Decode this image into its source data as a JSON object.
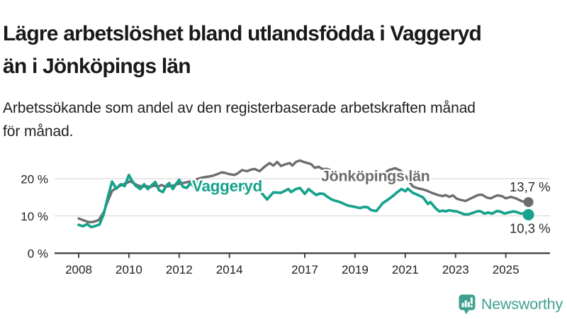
{
  "header": {
    "title_lines": [
      "Lägre arbetslöshet bland utlandsfödda i Vaggeryd",
      "än i Jönköpings län"
    ],
    "subtitle_lines": [
      "Arbetssökande som andel av den registerbaserade arbetskraften månad",
      "för månad."
    ]
  },
  "chart_data": {
    "type": "line",
    "title": "Lägre arbetslöshet bland utlandsfödda i Vaggeryd än i Jönköpings län",
    "subtitle": "Arbetssökande som andel av den registerbaserade arbetskraften månad för månad.",
    "grid": "horizontal",
    "legend": "inline-labels",
    "x_axis": {
      "tick_years": [
        2008,
        2010,
        2012,
        2014,
        2017,
        2019,
        2021,
        2023,
        2025
      ],
      "tick_labels": [
        "2008",
        "2010",
        "2012",
        "2014",
        "2017",
        "2019",
        "2021",
        "2023",
        "2025"
      ],
      "range": [
        2008,
        2026
      ]
    },
    "y_axis": {
      "ticks": [
        0,
        10,
        20
      ],
      "tick_labels": [
        "0 %",
        "10 %",
        "20 %"
      ],
      "unit": "%",
      "range": [
        0,
        26
      ]
    },
    "series": [
      {
        "name": "Jönköpings län",
        "color": "#6d6d71",
        "end_value": 13.7,
        "end_label": "13,7 %",
        "end_label_side": "above",
        "points": [
          [
            2008.0,
            9.3
          ],
          [
            2008.2,
            8.8
          ],
          [
            2008.4,
            8.3
          ],
          [
            2008.6,
            8.4
          ],
          [
            2008.8,
            8.9
          ],
          [
            2009.0,
            11.0
          ],
          [
            2009.15,
            13.8
          ],
          [
            2009.33,
            16.7
          ],
          [
            2009.5,
            17.5
          ],
          [
            2009.7,
            18.3
          ],
          [
            2009.9,
            18.8
          ],
          [
            2010.05,
            19.3
          ],
          [
            2010.2,
            18.7
          ],
          [
            2010.35,
            18.2
          ],
          [
            2010.55,
            17.8
          ],
          [
            2010.7,
            18.0
          ],
          [
            2010.85,
            17.7
          ],
          [
            2011.0,
            18.2
          ],
          [
            2011.15,
            17.8
          ],
          [
            2011.3,
            18.3
          ],
          [
            2011.45,
            17.8
          ],
          [
            2011.6,
            18.0
          ],
          [
            2011.75,
            18.1
          ],
          [
            2011.9,
            18.5
          ],
          [
            2012.05,
            18.7
          ],
          [
            2012.2,
            18.9
          ],
          [
            2012.35,
            19.1
          ],
          [
            2012.5,
            19.4
          ],
          [
            2012.65,
            19.7
          ],
          [
            2012.8,
            20.1
          ],
          [
            2013.0,
            20.4
          ],
          [
            2013.2,
            20.6
          ],
          [
            2013.35,
            20.8
          ],
          [
            2013.55,
            21.3
          ],
          [
            2013.7,
            21.7
          ],
          [
            2013.85,
            21.5
          ],
          [
            2014.0,
            21.2
          ],
          [
            2014.2,
            21.0
          ],
          [
            2014.35,
            21.5
          ],
          [
            2014.5,
            22.3
          ],
          [
            2014.7,
            22.0
          ],
          [
            2014.85,
            22.4
          ],
          [
            2015.0,
            22.6
          ],
          [
            2015.2,
            22.0
          ],
          [
            2015.4,
            23.2
          ],
          [
            2015.6,
            24.2
          ],
          [
            2015.75,
            23.5
          ],
          [
            2015.9,
            24.5
          ],
          [
            2016.05,
            23.4
          ],
          [
            2016.25,
            23.9
          ],
          [
            2016.4,
            24.2
          ],
          [
            2016.5,
            23.5
          ],
          [
            2016.65,
            24.5
          ],
          [
            2016.8,
            24.9
          ],
          [
            2016.95,
            24.5
          ],
          [
            2017.1,
            24.2
          ],
          [
            2017.25,
            23.9
          ],
          [
            2017.4,
            22.9
          ],
          [
            2017.55,
            23.2
          ],
          [
            2017.7,
            22.6
          ],
          [
            2017.9,
            22.6
          ],
          [
            2018.2,
            21.9
          ],
          [
            2018.5,
            21.4
          ],
          [
            2018.8,
            20.9
          ],
          [
            2019.1,
            20.5
          ],
          [
            2019.4,
            20.2
          ],
          [
            2019.7,
            20.0
          ],
          [
            2019.9,
            20.2
          ],
          [
            2020.1,
            21.2
          ],
          [
            2020.35,
            22.3
          ],
          [
            2020.6,
            22.8
          ],
          [
            2020.8,
            22.2
          ],
          [
            2021.0,
            20.8
          ],
          [
            2021.15,
            19.3
          ],
          [
            2021.3,
            17.9
          ],
          [
            2021.5,
            17.4
          ],
          [
            2021.7,
            17.1
          ],
          [
            2021.85,
            16.8
          ],
          [
            2022.05,
            16.2
          ],
          [
            2022.3,
            15.6
          ],
          [
            2022.5,
            15.3
          ],
          [
            2022.6,
            15.6
          ],
          [
            2022.75,
            15.1
          ],
          [
            2022.9,
            15.5
          ],
          [
            2023.05,
            14.6
          ],
          [
            2023.2,
            14.3
          ],
          [
            2023.4,
            14.0
          ],
          [
            2023.7,
            15.0
          ],
          [
            2023.9,
            15.6
          ],
          [
            2024.05,
            15.7
          ],
          [
            2024.25,
            14.9
          ],
          [
            2024.4,
            14.7
          ],
          [
            2024.65,
            15.5
          ],
          [
            2024.85,
            15.3
          ],
          [
            2025.0,
            14.7
          ],
          [
            2025.2,
            15.1
          ],
          [
            2025.4,
            14.7
          ],
          [
            2025.65,
            13.9
          ],
          [
            2025.9,
            13.7
          ]
        ]
      },
      {
        "name": "Vaggeryd",
        "color": "#16a28c",
        "end_value": 10.3,
        "end_label": "10,3 %",
        "end_label_side": "below",
        "points": [
          [
            2008.0,
            7.6
          ],
          [
            2008.17,
            7.2
          ],
          [
            2008.33,
            7.8
          ],
          [
            2008.5,
            7.0
          ],
          [
            2008.67,
            7.3
          ],
          [
            2008.83,
            7.7
          ],
          [
            2009.0,
            10.5
          ],
          [
            2009.15,
            14.8
          ],
          [
            2009.33,
            19.2
          ],
          [
            2009.5,
            17.3
          ],
          [
            2009.67,
            18.5
          ],
          [
            2009.83,
            18.0
          ],
          [
            2010.0,
            21.0
          ],
          [
            2010.1,
            19.7
          ],
          [
            2010.25,
            18.2
          ],
          [
            2010.45,
            17.2
          ],
          [
            2010.6,
            18.5
          ],
          [
            2010.75,
            17.2
          ],
          [
            2010.9,
            18.2
          ],
          [
            2011.05,
            19.1
          ],
          [
            2011.2,
            16.9
          ],
          [
            2011.35,
            16.4
          ],
          [
            2011.5,
            18.2
          ],
          [
            2011.6,
            18.8
          ],
          [
            2011.75,
            17.2
          ],
          [
            2011.9,
            18.8
          ],
          [
            2012.0,
            19.7
          ],
          [
            2012.15,
            17.8
          ],
          [
            2012.3,
            17.5
          ],
          [
            2012.45,
            18.8
          ],
          [
            2012.6,
            17.7
          ],
          [
            2012.75,
            18.9
          ],
          [
            2013.0,
            18.3
          ],
          [
            2013.25,
            17.6
          ],
          [
            2013.5,
            18.8
          ],
          [
            2013.75,
            18.0
          ],
          [
            2014.0,
            18.5
          ],
          [
            2014.25,
            17.4
          ],
          [
            2014.5,
            17.9
          ],
          [
            2014.75,
            16.9
          ],
          [
            2015.0,
            17.2
          ],
          [
            2015.25,
            16.4
          ],
          [
            2015.5,
            14.4
          ],
          [
            2015.75,
            16.3
          ],
          [
            2016.05,
            16.2
          ],
          [
            2016.35,
            17.2
          ],
          [
            2016.45,
            16.4
          ],
          [
            2016.65,
            17.2
          ],
          [
            2016.8,
            17.5
          ],
          [
            2017.0,
            15.9
          ],
          [
            2017.15,
            17.2
          ],
          [
            2017.3,
            16.4
          ],
          [
            2017.45,
            15.6
          ],
          [
            2017.6,
            16.0
          ],
          [
            2017.75,
            15.9
          ],
          [
            2017.9,
            15.1
          ],
          [
            2018.1,
            14.3
          ],
          [
            2018.4,
            13.7
          ],
          [
            2018.7,
            12.8
          ],
          [
            2019.0,
            12.4
          ],
          [
            2019.2,
            12.1
          ],
          [
            2019.35,
            12.4
          ],
          [
            2019.5,
            12.3
          ],
          [
            2019.65,
            11.5
          ],
          [
            2019.85,
            11.3
          ],
          [
            2020.1,
            13.4
          ],
          [
            2020.3,
            14.3
          ],
          [
            2020.5,
            15.3
          ],
          [
            2020.65,
            16.2
          ],
          [
            2020.85,
            17.2
          ],
          [
            2021.0,
            16.6
          ],
          [
            2021.1,
            17.3
          ],
          [
            2021.3,
            16.2
          ],
          [
            2021.5,
            15.6
          ],
          [
            2021.7,
            15.0
          ],
          [
            2021.9,
            13.2
          ],
          [
            2022.0,
            13.7
          ],
          [
            2022.2,
            12.1
          ],
          [
            2022.35,
            11.2
          ],
          [
            2022.5,
            11.4
          ],
          [
            2022.6,
            11.2
          ],
          [
            2022.75,
            11.5
          ],
          [
            2022.9,
            11.3
          ],
          [
            2023.05,
            11.2
          ],
          [
            2023.35,
            10.4
          ],
          [
            2023.5,
            10.4
          ],
          [
            2023.65,
            10.7
          ],
          [
            2023.9,
            11.3
          ],
          [
            2024.0,
            11.2
          ],
          [
            2024.15,
            10.6
          ],
          [
            2024.3,
            10.9
          ],
          [
            2024.45,
            10.6
          ],
          [
            2024.65,
            11.3
          ],
          [
            2024.8,
            11.1
          ],
          [
            2024.95,
            10.6
          ],
          [
            2025.1,
            10.9
          ],
          [
            2025.3,
            11.2
          ],
          [
            2025.45,
            11.0
          ],
          [
            2025.6,
            10.6
          ],
          [
            2025.75,
            10.7
          ],
          [
            2025.9,
            10.3
          ]
        ]
      }
    ]
  },
  "footer": {
    "brand": "Newsworthy",
    "brand_color": "#3fa08f"
  }
}
